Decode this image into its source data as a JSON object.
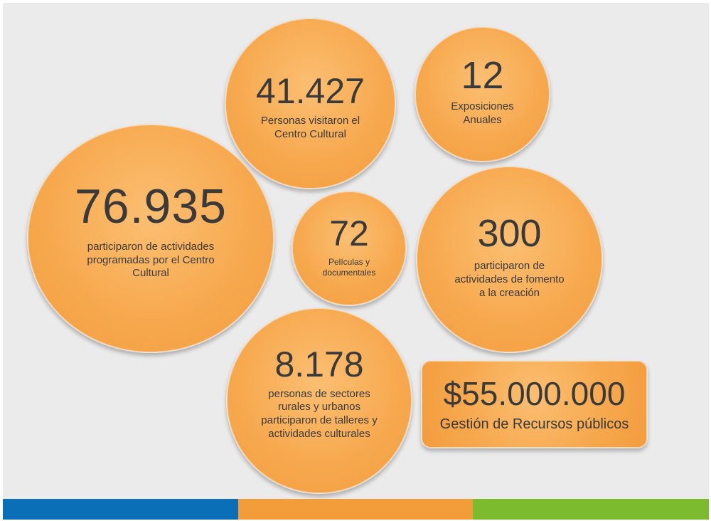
{
  "stats": [
    {
      "id": "visits",
      "value": "41.427",
      "label": "Personas visitaron el Centro Cultural"
    },
    {
      "id": "exhibitions",
      "value": "12",
      "label": "Exposiciones Anuales"
    },
    {
      "id": "participants",
      "value": "76.935",
      "label": "participaron de actividades programadas por el Centro Cultural"
    },
    {
      "id": "films",
      "value": "72",
      "label": "Películas y documentales"
    },
    {
      "id": "creation",
      "value": "300",
      "label": "participaron de actividades de fomento a la creación"
    },
    {
      "id": "workshops",
      "value": "8.178",
      "label": "personas de sectores rurales y urbanos participaron de talleres y actividades culturales"
    },
    {
      "id": "resources",
      "value": "$55.000.000",
      "label": "Gestión de Recursos públicos"
    }
  ],
  "colors": {
    "background": "#ebebeb",
    "bubble": "#f7a94f",
    "text": "#3a3a3a",
    "stripe_blue": "#0b6fb8",
    "stripe_orange": "#f29d3a",
    "stripe_green": "#7cbb2e"
  }
}
